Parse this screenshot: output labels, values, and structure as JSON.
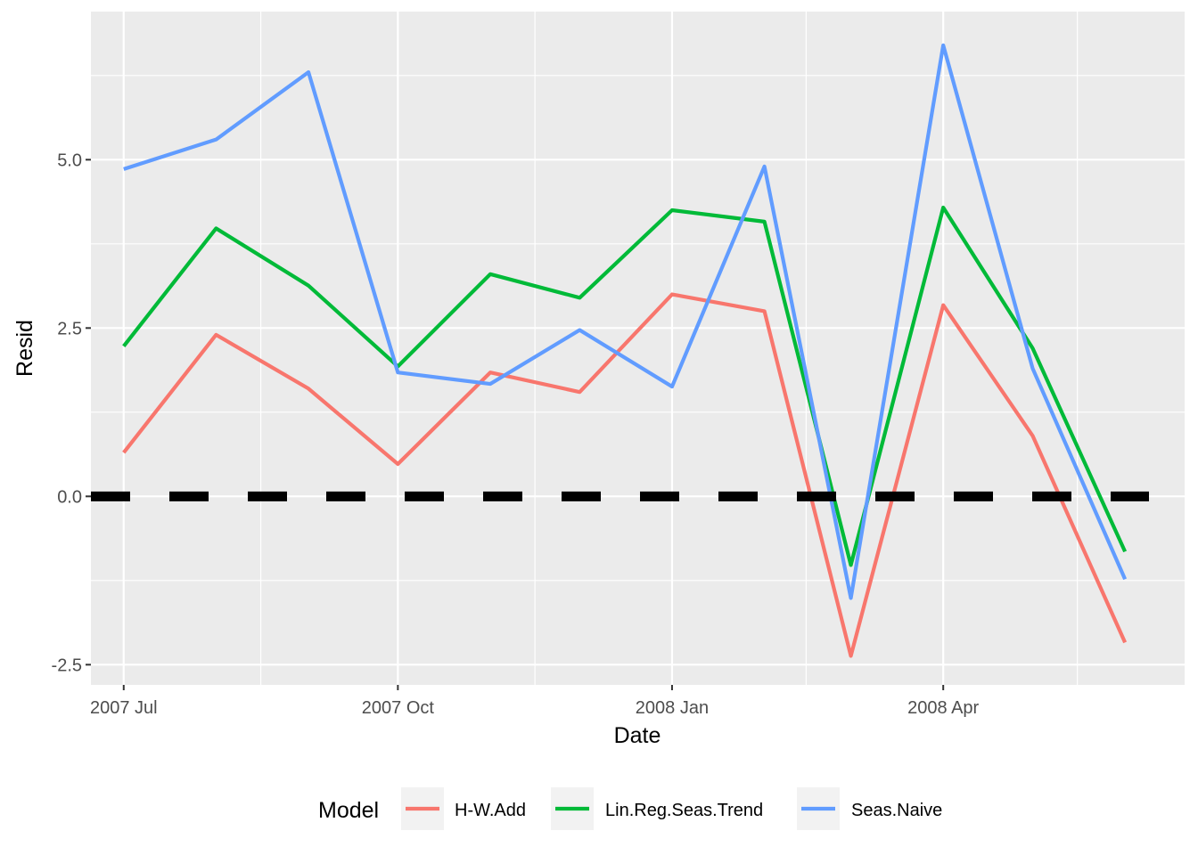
{
  "chart_data": {
    "type": "line",
    "xlabel": "Date",
    "ylabel": "Resid",
    "x": [
      "2007-07",
      "2007-08",
      "2007-09",
      "2007-10",
      "2007-11",
      "2007-12",
      "2008-01",
      "2008-02",
      "2008-03",
      "2008-04",
      "2008-05",
      "2008-06"
    ],
    "x_ticks": [
      {
        "date": "2007-07",
        "label": "2007 Jul"
      },
      {
        "date": "2007-10",
        "label": "2007 Oct"
      },
      {
        "date": "2008-01",
        "label": "2008 Jan"
      },
      {
        "date": "2008-04",
        "label": "2008 Apr"
      }
    ],
    "xlim": [
      "2007-06-20",
      "2008-06-21"
    ],
    "ylim": [
      -2.8,
      7.2
    ],
    "y_ticks": [
      {
        "value": -2.5,
        "label": "-2.5"
      },
      {
        "value": 0.0,
        "label": "0.0"
      },
      {
        "value": 2.5,
        "label": "2.5"
      },
      {
        "value": 5.0,
        "label": "5.0"
      }
    ],
    "grid": true,
    "legend": {
      "title": "Model",
      "position": "bottom"
    },
    "reference_line": {
      "y": 0,
      "style": "dashed",
      "color": "#000000"
    },
    "series": [
      {
        "name": "H-W.Add",
        "color": "#F8766D",
        "values": [
          0.65,
          2.4,
          1.6,
          0.48,
          1.84,
          1.55,
          3.0,
          2.75,
          -2.37,
          2.84,
          0.9,
          -2.17
        ]
      },
      {
        "name": "Lin.Reg.Seas.Trend",
        "color": "#00BA38",
        "values": [
          2.23,
          3.98,
          3.13,
          1.93,
          3.3,
          2.95,
          4.25,
          4.08,
          -1.02,
          4.29,
          2.2,
          -0.82
        ]
      },
      {
        "name": "Seas.Naive",
        "color": "#619CFF",
        "values": [
          4.86,
          5.3,
          6.3,
          1.84,
          1.67,
          2.47,
          1.63,
          4.9,
          -1.51,
          6.7,
          1.9,
          -1.23
        ]
      }
    ]
  }
}
